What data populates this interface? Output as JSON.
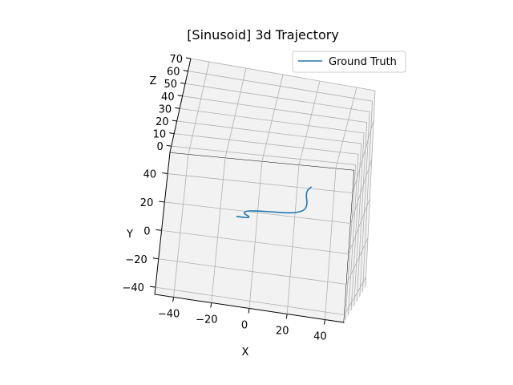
{
  "chart_data": {
    "type": "line",
    "projection": "3d",
    "title": "[Sinusoid] 3d Trajectory",
    "xlabel": "X",
    "ylabel": "Y",
    "zlabel": "Z",
    "xlim": [
      -50,
      50
    ],
    "ylim": [
      -45,
      55
    ],
    "zlim": [
      -5,
      70
    ],
    "x_ticks": [
      -40,
      -20,
      0,
      20,
      40
    ],
    "y_ticks": [
      -40,
      -20,
      0,
      20,
      40
    ],
    "z_ticks": [
      0,
      10,
      20,
      30,
      40,
      50,
      60,
      70
    ],
    "grid": true,
    "legend": {
      "position": "top-right",
      "entries": [
        "Ground Truth"
      ]
    },
    "series": [
      {
        "name": "Ground Truth",
        "color": "#1f77b4",
        "points": [
          {
            "x": -12,
            "y": 13,
            "z": 0
          },
          {
            "x": -7,
            "y": 13,
            "z": 0
          },
          {
            "x": -5,
            "y": 14,
            "z": 0
          },
          {
            "x": -9,
            "y": 16,
            "z": 0
          },
          {
            "x": -7,
            "y": 18,
            "z": 0
          },
          {
            "x": -1,
            "y": 19,
            "z": 0
          },
          {
            "x": 8,
            "y": 20,
            "z": 0
          },
          {
            "x": 17,
            "y": 21,
            "z": 0
          },
          {
            "x": 23,
            "y": 24,
            "z": 0
          },
          {
            "x": 24,
            "y": 29,
            "z": 0
          },
          {
            "x": 23,
            "y": 34,
            "z": 0
          },
          {
            "x": 23,
            "y": 38,
            "z": 0
          },
          {
            "x": 25,
            "y": 41,
            "z": 0
          }
        ]
      }
    ]
  }
}
